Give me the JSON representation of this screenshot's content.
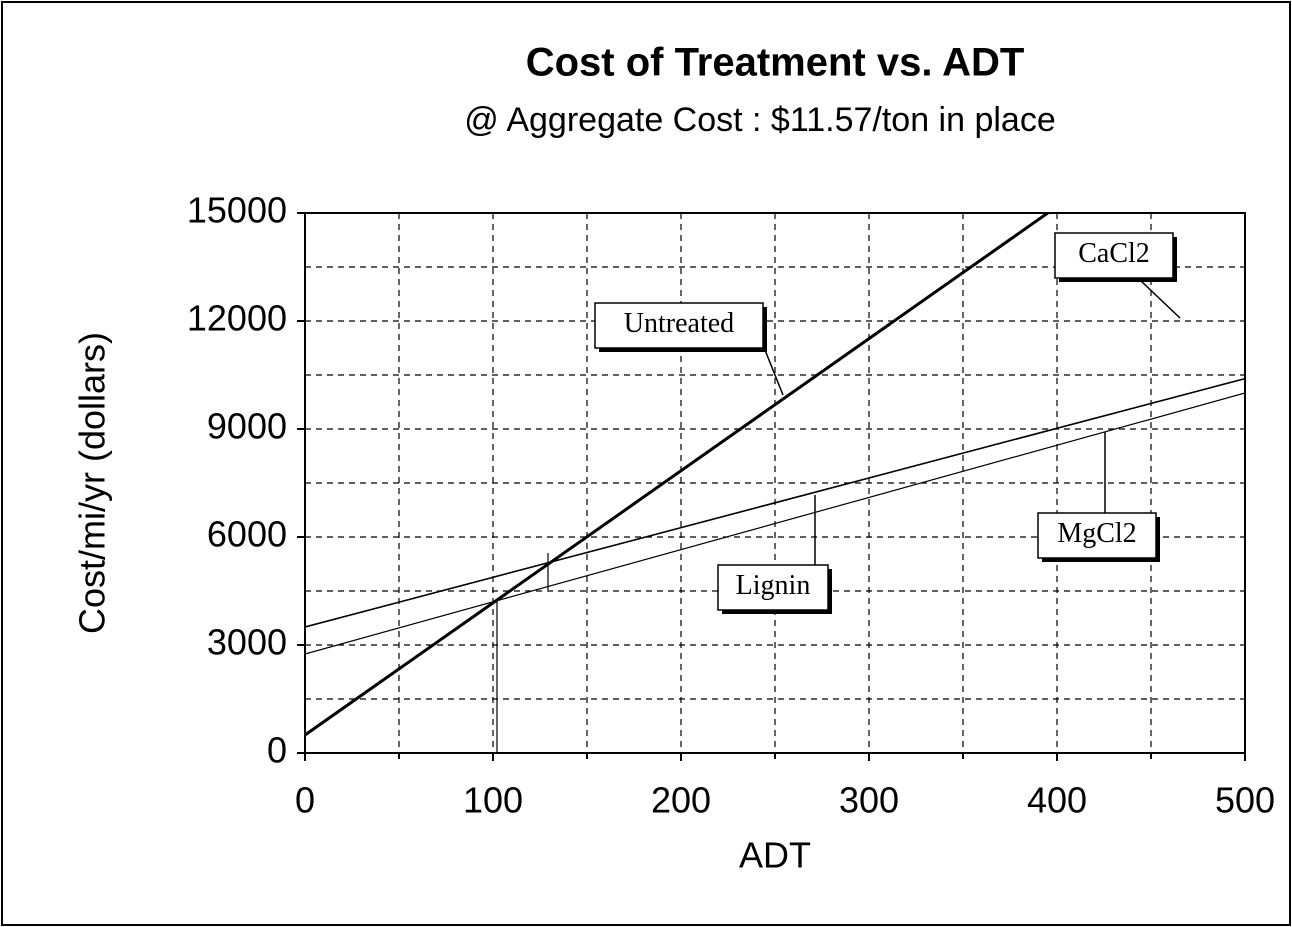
{
  "chart_data": {
    "type": "line",
    "title": "Cost of Treatment vs. ADT",
    "subtitle": "@ Aggregate Cost : $11.57/ton in place",
    "x_label": "ADT",
    "y_label": "Cost/mi/yr (dollars)",
    "x": [
      0,
      500
    ],
    "series": [
      {
        "name": "Untreated",
        "color": "#000000",
        "values": [
          500,
          18850
        ]
      },
      {
        "name": "Lignin",
        "color": "#000000",
        "values": [
          3500,
          10400
        ]
      },
      {
        "name": "MgCl2",
        "color": "#000000",
        "values": [
          2750,
          10000
        ]
      }
    ],
    "annotations": [
      "CaCl2"
    ],
    "xlim": [
      0,
      500
    ],
    "xticks": [
      0,
      100,
      200,
      300,
      400,
      500
    ],
    "ylim": [
      0,
      15000
    ],
    "yticks": [
      0,
      3000,
      6000,
      9000,
      12000,
      15000
    ],
    "xminor": [
      50,
      150,
      250,
      350,
      450
    ],
    "yminor": [
      1500,
      4500,
      7500,
      10500,
      13500
    ],
    "grid": true
  }
}
